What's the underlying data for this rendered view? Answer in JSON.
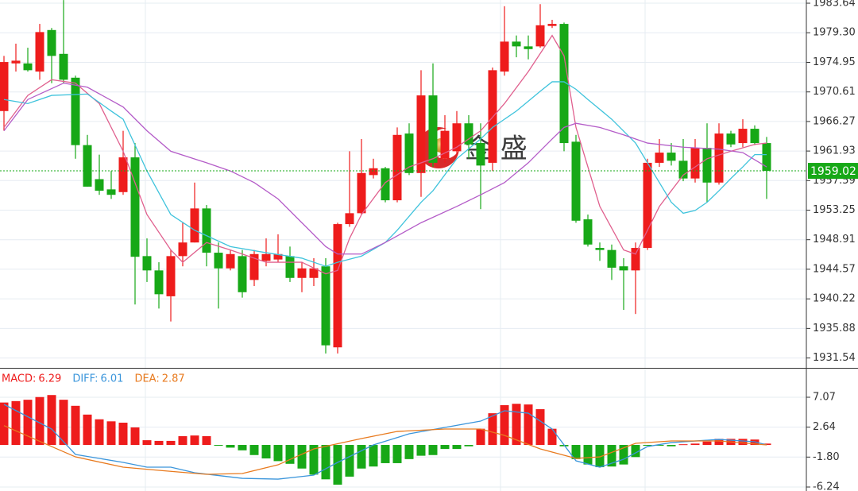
{
  "chart_data": [
    {
      "type": "candlestick",
      "watermark": "金 盛",
      "open": [
        1967.8,
        1974.8,
        1974.8,
        1973.6,
        1979.7,
        1976.2,
        1972.7,
        1962.8,
        1957.8,
        1956.3,
        1955.9,
        1961.0,
        1946.5,
        1944.4,
        1940.6,
        1946.5,
        1948.5,
        1953.5,
        1947.0,
        1944.7,
        1946.5,
        1943.0,
        1945.8,
        1946.0,
        1946.5,
        1943.3,
        1943.3,
        1945.0,
        1933.1,
        1951.2,
        1952.8,
        1958.4,
        1959.4,
        1954.7,
        1964.5,
        1958.7,
        1970.1,
        1960.8,
        1961.9,
        1966.0,
        1963.1,
        1960.2,
        1973.6,
        1978.0,
        1977.3,
        1977.3,
        1980.3,
        1980.6,
        1963.3,
        1951.9,
        1947.7,
        1947.4,
        1945.0,
        1944.4,
        1947.7,
        1960.2,
        1961.7,
        1960.5,
        1957.9,
        1962.4,
        1957.3,
        1964.5,
        1963.1,
        1965.2,
        1963.1
      ],
      "high": [
        1975.9,
        1977.7,
        1977.1,
        1980.6,
        1980.0,
        1984.1,
        1973.0,
        1964.3,
        1961.4,
        1959.0,
        1964.9,
        1963.1,
        1949.1,
        1945.6,
        1947.4,
        1951.4,
        1957.3,
        1954.0,
        1948.5,
        1947.4,
        1947.4,
        1947.4,
        1949.1,
        1949.7,
        1947.9,
        1945.6,
        1946.2,
        1946.2,
        1951.4,
        1961.9,
        1963.7,
        1960.8,
        1959.6,
        1965.4,
        1966.0,
        1973.8,
        1974.8,
        1967.2,
        1967.8,
        1967.2,
        1966.0,
        1974.2,
        1983.2,
        1978.9,
        1978.9,
        1983.5,
        1981.2,
        1980.8,
        1964.3,
        1952.6,
        1948.5,
        1948.2,
        1946.2,
        1948.5,
        1960.8,
        1963.7,
        1963.1,
        1963.7,
        1963.7,
        1966.0,
        1966.0,
        1964.9,
        1966.6,
        1965.7,
        1964.0
      ],
      "low": [
        1964.9,
        1973.6,
        1973.6,
        1972.4,
        1971.9,
        1971.9,
        1960.8,
        1956.7,
        1955.5,
        1954.9,
        1955.5,
        1939.4,
        1942.7,
        1938.8,
        1936.9,
        1945.0,
        1948.5,
        1945.0,
        1938.8,
        1944.4,
        1940.4,
        1942.1,
        1945.0,
        1945.6,
        1942.7,
        1941.2,
        1942.1,
        1932.2,
        1932.2,
        1950.8,
        1952.6,
        1957.9,
        1954.4,
        1954.4,
        1958.4,
        1955.2,
        1959.6,
        1960.2,
        1961.4,
        1960.8,
        1953.4,
        1959.0,
        1973.0,
        1975.7,
        1975.4,
        1977.1,
        1980.0,
        1961.9,
        1951.4,
        1947.9,
        1945.8,
        1943.0,
        1938.6,
        1938.0,
        1947.4,
        1959.6,
        1959.8,
        1957.5,
        1957.3,
        1954.4,
        1957.0,
        1962.5,
        1962.5,
        1962.8,
        1954.9
      ],
      "close": [
        1975.0,
        1975.2,
        1973.8,
        1979.4,
        1975.9,
        1972.4,
        1962.8,
        1956.7,
        1956.1,
        1955.5,
        1961.0,
        1946.4,
        1944.4,
        1940.9,
        1946.5,
        1948.5,
        1953.5,
        1947.0,
        1944.7,
        1946.8,
        1941.2,
        1946.8,
        1946.8,
        1946.8,
        1943.3,
        1944.7,
        1944.7,
        1933.4,
        1951.2,
        1952.8,
        1958.7,
        1959.4,
        1954.7,
        1964.3,
        1958.7,
        1970.1,
        1960.2,
        1964.9,
        1966.0,
        1962.9,
        1959.8,
        1973.8,
        1978.0,
        1977.3,
        1976.9,
        1980.4,
        1980.6,
        1963.1,
        1951.7,
        1948.2,
        1947.4,
        1944.8,
        1944.4,
        1947.7,
        1960.2,
        1961.7,
        1960.5,
        1957.9,
        1962.4,
        1957.3,
        1964.5,
        1962.9,
        1965.2,
        1963.1,
        1959.02
      ],
      "up_color": "#ee1c1c",
      "down_color": "#17a817",
      "overlays": [
        {
          "color": "#e0608e",
          "x": [
            0,
            2,
            4,
            6,
            8,
            9,
            10,
            12,
            14,
            15,
            17,
            19,
            22,
            25,
            27,
            28,
            29,
            30,
            32,
            34,
            36,
            38,
            40,
            42,
            44,
            46,
            47,
            48,
            50,
            52,
            53,
            55,
            57,
            59,
            61,
            63,
            64
          ],
          "values": [
            1965.4,
            1970.1,
            1972.4,
            1971.9,
            1968.9,
            1965.4,
            1961.9,
            1952.6,
            1947.4,
            1945.6,
            1948.5,
            1947.4,
            1945.6,
            1945.6,
            1943.9,
            1944.4,
            1949.1,
            1952.6,
            1957.3,
            1959.6,
            1960.8,
            1962.5,
            1964.9,
            1968.9,
            1973.6,
            1978.9,
            1975.9,
            1965.4,
            1953.8,
            1947.4,
            1946.8,
            1953.8,
            1958.4,
            1960.8,
            1961.9,
            1962.9,
            1963.1
          ]
        },
        {
          "color": "#3fc3dc",
          "x": [
            0,
            2,
            4,
            7,
            9,
            10,
            12,
            14,
            16,
            19,
            22,
            25,
            27,
            28,
            30,
            32,
            33,
            35,
            36,
            38,
            40,
            41,
            43,
            45,
            46,
            47,
            48,
            49,
            51,
            53,
            54,
            55,
            56,
            57,
            58,
            59,
            60,
            61,
            62,
            63,
            64
          ],
          "values": [
            1969.5,
            1968.9,
            1970.1,
            1970.3,
            1967.8,
            1966.6,
            1959.0,
            1952.6,
            1950.3,
            1947.9,
            1947.0,
            1946.2,
            1945.0,
            1945.6,
            1946.5,
            1948.5,
            1950.3,
            1954.4,
            1956.1,
            1960.8,
            1963.7,
            1965.4,
            1967.8,
            1970.7,
            1972.1,
            1972.1,
            1971.0,
            1969.5,
            1966.6,
            1963.1,
            1960.2,
            1957.3,
            1954.4,
            1952.8,
            1953.2,
            1954.4,
            1956.1,
            1957.9,
            1959.6,
            1961.4,
            1961.4
          ]
        },
        {
          "color": "#b45cc8",
          "x": [
            0,
            2,
            5,
            7,
            10,
            12,
            14,
            17,
            19,
            21,
            23,
            25,
            27,
            28,
            30,
            32,
            35,
            38,
            40,
            42,
            44,
            46,
            47,
            48,
            50,
            52,
            54,
            57,
            60,
            62,
            64
          ],
          "values": [
            1964.9,
            1969.5,
            1971.9,
            1971.3,
            1968.4,
            1964.9,
            1961.9,
            1960.2,
            1959.0,
            1957.3,
            1954.9,
            1951.4,
            1947.9,
            1946.8,
            1946.8,
            1948.5,
            1951.4,
            1953.8,
            1955.5,
            1957.3,
            1960.2,
            1963.7,
            1965.4,
            1966.0,
            1965.4,
            1964.3,
            1963.1,
            1962.5,
            1962.2,
            1961.7,
            1959.6
          ]
        }
      ],
      "last_price": {
        "value": 1959.02,
        "label": "1959.02",
        "color": "#17a817"
      },
      "ylim": [
        1930.09,
        1984.11
      ],
      "yticks": [
        1983.64,
        {
          "value": 1979.3,
          "label": "1979.30"
        },
        1974.95,
        1970.61,
        1966.27,
        1961.93,
        1957.59,
        1953.25,
        1948.91,
        1944.57,
        1940.22,
        1935.88,
        1931.54
      ]
    },
    {
      "type": "macd",
      "header": [
        {
          "label": "MACD:",
          "value": 6.29,
          "color": "#ee1c1c"
        },
        {
          "label": "DIFF:",
          "value": 6.01,
          "color": "#3a95db"
        },
        {
          "label": "DEA:",
          "value": 2.87,
          "color": "#e87a1e"
        }
      ],
      "values": [
        6.29,
        6.5,
        6.7,
        7.1,
        7.4,
        6.7,
        5.8,
        4.5,
        3.8,
        3.5,
        3.3,
        2.6,
        0.7,
        0.6,
        0.6,
        1.3,
        1.4,
        1.3,
        -0.1,
        -0.4,
        -0.8,
        -1.5,
        -2.0,
        -2.4,
        -2.8,
        -3.5,
        -4.4,
        -5.1,
        -5.9,
        -4.7,
        -3.5,
        -3.2,
        -2.7,
        -2.7,
        -2.1,
        -1.6,
        -1.5,
        -0.6,
        -0.6,
        -0.2,
        2.4,
        4.7,
        5.9,
        6.1,
        6.0,
        5.3,
        2.4,
        -0.2,
        -2.1,
        -2.9,
        -3.3,
        -3.2,
        -2.9,
        -1.8,
        -0.1,
        -0.1,
        -0.2,
        0.1,
        0.2,
        0.5,
        0.9,
        0.9,
        0.9,
        0.8,
        0.2
      ],
      "up_color": "#ee1c1c",
      "down_color": "#17a817",
      "series": [
        {
          "color": "#3a95db",
          "x": [
            0,
            4,
            6,
            10,
            12,
            14,
            16,
            20,
            23,
            26,
            28,
            31,
            34,
            37,
            40,
            42,
            44,
            46,
            48,
            50,
            52,
            54,
            56,
            60,
            63,
            64
          ],
          "values": [
            6.01,
            2.36,
            -1.41,
            -2.59,
            -3.3,
            -3.3,
            -4.12,
            -4.95,
            -5.07,
            -4.48,
            -2.59,
            0,
            1.65,
            2.59,
            3.53,
            5.07,
            4.71,
            2.36,
            -2.36,
            -3.3,
            -2.12,
            -0.24,
            0.35,
            0.82,
            0.47,
            0
          ]
        },
        {
          "color": "#e87a1e",
          "x": [
            0,
            4,
            6,
            10,
            13,
            17,
            20,
            23,
            26,
            30,
            33,
            37,
            40,
            42,
            45,
            48,
            50,
            53,
            56,
            60,
            64
          ],
          "values": [
            2.87,
            -0.24,
            -1.77,
            -3.3,
            -3.77,
            -4.36,
            -4.24,
            -2.95,
            -0.59,
            0.94,
            2.0,
            2.36,
            2.36,
            1.41,
            -0.59,
            -2.0,
            -1.77,
            0.24,
            0.59,
            0.59,
            0
          ]
        }
      ],
      "ylim": [
        -6.83,
        11.43
      ],
      "yticks": [
        7.07,
        2.64,
        {
          "value": -1.8,
          "label": "-1.80"
        },
        -6.24
      ]
    }
  ]
}
